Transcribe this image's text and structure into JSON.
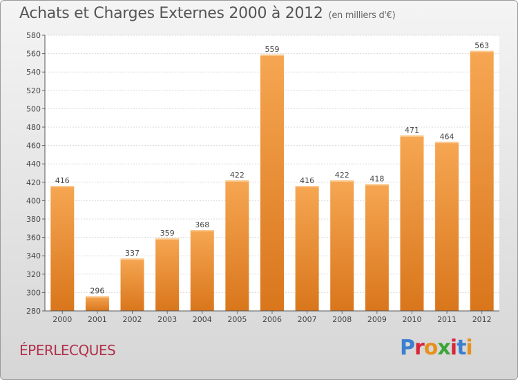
{
  "header": {
    "title": "Achats et Charges Externes 2000 à 2012",
    "unit": "(en milliers d'€)"
  },
  "footer": {
    "commune": "ÉPERLECQUES",
    "logo": "Proxiti"
  },
  "colors": {
    "bar_top": "#f6a652",
    "bar_bottom": "#d9761c",
    "axis": "#555555",
    "commune": "#b0304a"
  },
  "chart_data": {
    "type": "bar",
    "title": "Achats et Charges Externes 2000 à 2012",
    "subtitle": "(en milliers d'€)",
    "categories": [
      "2000",
      "2001",
      "2002",
      "2003",
      "2004",
      "2005",
      "2006",
      "2007",
      "2008",
      "2009",
      "2010",
      "2011",
      "2012"
    ],
    "values": [
      416,
      296,
      337,
      359,
      368,
      422,
      559,
      416,
      422,
      418,
      471,
      464,
      563
    ],
    "ylim": [
      280,
      580
    ],
    "yticks": [
      280,
      300,
      320,
      340,
      360,
      380,
      400,
      420,
      440,
      460,
      480,
      500,
      520,
      540,
      560,
      580
    ],
    "grid": true,
    "data_labels": true
  }
}
